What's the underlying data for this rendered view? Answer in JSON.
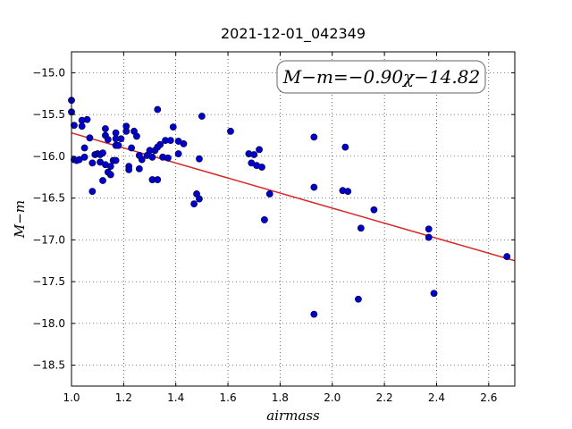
{
  "chart_data": {
    "type": "scatter",
    "title": "2021-12-01_042349",
    "xlabel": "airmass",
    "ylabel": "M−m",
    "xlim": [
      1.0,
      2.7
    ],
    "ylim": [
      -18.75,
      -14.75
    ],
    "y_inverted": true,
    "grid": true,
    "xticks": [
      1.0,
      1.2,
      1.4,
      1.6,
      1.8,
      2.0,
      2.2,
      2.4,
      2.6
    ],
    "xtick_labels": [
      "1.0",
      "1.2",
      "1.4",
      "1.6",
      "1.8",
      "2.0",
      "2.2",
      "2.4",
      "2.6"
    ],
    "yticks": [
      -15.0,
      -15.5,
      -16.0,
      -16.5,
      -17.0,
      -17.5,
      -18.0,
      -18.5
    ],
    "ytick_labels": [
      "−15.0",
      "−15.5",
      "−16.0",
      "−16.5",
      "−17.0",
      "−17.5",
      "−18.0",
      "−18.5"
    ],
    "annotation": "M−m=−0.90χ−14.82",
    "fit": {
      "slope": -0.9,
      "intercept": -14.82,
      "color": "#d62728"
    },
    "marker_color": "#0000cc",
    "series": [
      {
        "points": [
          [
            1.0,
            -15.33
          ],
          [
            1.0,
            -15.47
          ],
          [
            1.01,
            -15.63
          ],
          [
            1.01,
            -16.04
          ],
          [
            1.02,
            -16.05
          ],
          [
            1.03,
            -16.04
          ],
          [
            1.04,
            -15.57
          ],
          [
            1.04,
            -15.64
          ],
          [
            1.05,
            -15.9
          ],
          [
            1.05,
            -16.01
          ],
          [
            1.06,
            -15.56
          ],
          [
            1.07,
            -15.78
          ],
          [
            1.08,
            -16.08
          ],
          [
            1.08,
            -16.42
          ],
          [
            1.09,
            -15.98
          ],
          [
            1.1,
            -15.97
          ],
          [
            1.11,
            -15.98
          ],
          [
            1.11,
            -16.07
          ],
          [
            1.12,
            -16.29
          ],
          [
            1.12,
            -15.96
          ],
          [
            1.13,
            -15.67
          ],
          [
            1.13,
            -15.75
          ],
          [
            1.13,
            -16.1
          ],
          [
            1.14,
            -15.8
          ],
          [
            1.14,
            -16.19
          ],
          [
            1.15,
            -16.12
          ],
          [
            1.15,
            -16.22
          ],
          [
            1.16,
            -16.05
          ],
          [
            1.17,
            -16.05
          ],
          [
            1.17,
            -15.72
          ],
          [
            1.17,
            -15.79
          ],
          [
            1.17,
            -15.87
          ],
          [
            1.18,
            -15.87
          ],
          [
            1.19,
            -15.79
          ],
          [
            1.21,
            -15.64
          ],
          [
            1.21,
            -15.7
          ],
          [
            1.22,
            -16.12
          ],
          [
            1.22,
            -16.16
          ],
          [
            1.23,
            -15.9
          ],
          [
            1.24,
            -15.7
          ],
          [
            1.25,
            -15.76
          ],
          [
            1.26,
            -15.99
          ],
          [
            1.26,
            -16.15
          ],
          [
            1.27,
            -16.04
          ],
          [
            1.29,
            -15.99
          ],
          [
            1.3,
            -15.93
          ],
          [
            1.31,
            -16.01
          ],
          [
            1.31,
            -16.28
          ],
          [
            1.32,
            -15.93
          ],
          [
            1.33,
            -15.44
          ],
          [
            1.33,
            -15.89
          ],
          [
            1.33,
            -16.28
          ],
          [
            1.34,
            -15.86
          ],
          [
            1.35,
            -16.01
          ],
          [
            1.36,
            -15.81
          ],
          [
            1.37,
            -16.02
          ],
          [
            1.38,
            -15.81
          ],
          [
            1.39,
            -15.65
          ],
          [
            1.41,
            -15.97
          ],
          [
            1.41,
            -15.82
          ],
          [
            1.43,
            -15.85
          ],
          [
            1.47,
            -16.57
          ],
          [
            1.48,
            -16.45
          ],
          [
            1.49,
            -16.51
          ],
          [
            1.49,
            -16.03
          ],
          [
            1.5,
            -15.52
          ],
          [
            1.61,
            -15.7
          ],
          [
            1.68,
            -15.97
          ],
          [
            1.69,
            -16.08
          ],
          [
            1.7,
            -15.98
          ],
          [
            1.71,
            -16.11
          ],
          [
            1.72,
            -15.92
          ],
          [
            1.73,
            -16.13
          ],
          [
            1.74,
            -16.76
          ],
          [
            1.76,
            -16.45
          ],
          [
            1.93,
            -15.77
          ],
          [
            1.93,
            -16.37
          ],
          [
            1.93,
            -17.89
          ],
          [
            2.04,
            -16.41
          ],
          [
            2.05,
            -15.89
          ],
          [
            2.06,
            -16.42
          ],
          [
            2.1,
            -17.71
          ],
          [
            2.11,
            -16.86
          ],
          [
            2.16,
            -16.64
          ],
          [
            2.37,
            -16.87
          ],
          [
            2.37,
            -16.97
          ],
          [
            2.39,
            -17.64
          ],
          [
            2.67,
            -17.2
          ]
        ]
      }
    ]
  }
}
